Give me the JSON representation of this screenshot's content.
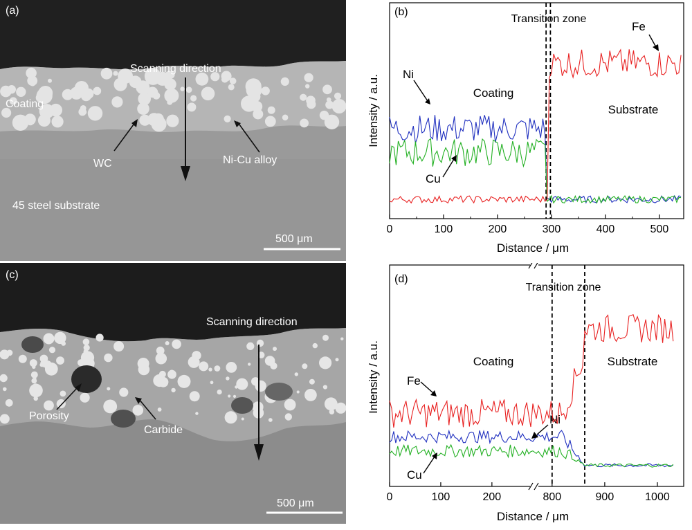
{
  "panels": {
    "a": {
      "letter": "(a)",
      "labels": {
        "coating": "Coating",
        "scanning": "Scanning direction",
        "wc": "WC",
        "nicu": "Ni-Cu alloy",
        "substrate": "45 steel substrate"
      },
      "scalebar": "500 μm"
    },
    "c": {
      "letter": "(c)",
      "labels": {
        "scanning": "Scanning direction",
        "porosity": "Porosity",
        "carbide": "Carbide"
      },
      "scalebar": "500 μm"
    }
  },
  "chart_data": [
    {
      "panel": "(b)",
      "type": "line",
      "xlabel": "Distance / μm",
      "ylabel": "Intensity / a.u.",
      "xlim": [
        0,
        545
      ],
      "xticks": [
        "0",
        "100",
        "200",
        "300",
        "400",
        "500"
      ],
      "ylim": [
        0,
        1
      ],
      "transition_zone": {
        "label": "Transition zone",
        "x": [
          290,
          298
        ]
      },
      "annotations": {
        "coating": "Coating",
        "substrate": "Substrate"
      },
      "series": [
        {
          "name": "Ni",
          "color": "#1f2fbf",
          "coating_level": 0.42,
          "substrate_level": 0.03,
          "step_x": 292
        },
        {
          "name": "Cu",
          "color": "#22b022",
          "coating_level": 0.29,
          "substrate_level": 0.03,
          "step_x": 292
        },
        {
          "name": "Fe",
          "color": "#e82020",
          "coating_level": 0.03,
          "substrate_level": 0.78,
          "step_x": 296
        }
      ]
    },
    {
      "panel": "(d)",
      "type": "line",
      "xlabel": "Distance / μm",
      "ylabel": "Intensity / a.u.",
      "xticks": [
        "0",
        "100",
        "200",
        "800",
        "900",
        "1000"
      ],
      "axis_break": true,
      "ylim": [
        0,
        1
      ],
      "transition_zone": {
        "label": "Transition zone",
        "x": [
          800,
          862
        ]
      },
      "annotations": {
        "coating": "Coating",
        "substrate": "Substrate"
      },
      "series": [
        {
          "name": "Fe",
          "color": "#e82020",
          "coating_level": 0.33,
          "substrate_level": 0.8
        },
        {
          "name": "Ni",
          "color": "#1f2fbf",
          "coating_level": 0.2,
          "substrate_level": 0.04
        },
        {
          "name": "Cu",
          "color": "#22b022",
          "coating_level": 0.12,
          "substrate_level": 0.04
        }
      ]
    }
  ]
}
